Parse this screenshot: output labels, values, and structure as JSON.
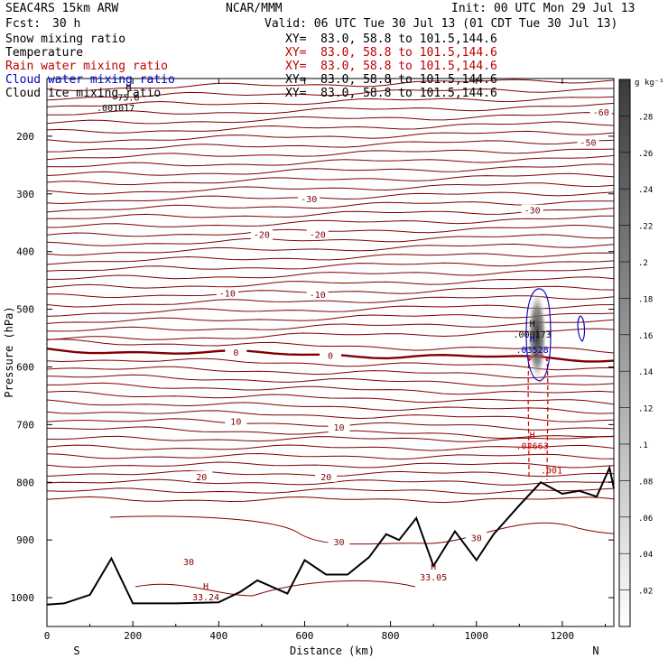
{
  "header": {
    "model": "SEAC4RS 15km ARW",
    "center": "NCAR/MMM",
    "init": "Init: 00 UTC Mon 29 Jul 13",
    "fcst_label": "Fcst:",
    "fcst_value": "30 h",
    "valid": "Valid: 06 UTC Tue 30 Jul 13 (01 CDT Tue 30 Jul 13)"
  },
  "fields": [
    {
      "name": "Snow mixing ratio",
      "color": "#000000",
      "xy": "XY=  83.0, 58.8 to 101.5,144.6",
      "xy_color": "#000000"
    },
    {
      "name": "Temperature",
      "color": "#000000",
      "xy": "XY=  83.0, 58.8 to 101.5,144.6",
      "xy_color": "#c00000"
    },
    {
      "name": "Rain water mixing ratio",
      "color": "#c00000",
      "xy": "XY=  83.0, 58.8 to 101.5,144.6",
      "xy_color": "#c00000"
    },
    {
      "name": "Cloud water mixing ratio",
      "color": "#0000c0",
      "xy": "XY=  83.0, 58.8 to 101.5,144.6",
      "xy_color": "#000000"
    },
    {
      "name": "Cloud ice mixing ratio",
      "color": "#000000",
      "xy": "XY=  83.0, 58.8 to 101.5,144.6",
      "xy_color": "#000000"
    }
  ],
  "chart_data": {
    "type": "contour-cross-section",
    "xlabel": "Distance (km)",
    "ylabel": "Pressure (hPa)",
    "xlim": [
      0,
      1320
    ],
    "ylim": [
      1050,
      100
    ],
    "x_ticks": [
      0,
      200,
      400,
      600,
      800,
      1000,
      1200
    ],
    "y_ticks": [
      200,
      300,
      400,
      500,
      600,
      700,
      800,
      900,
      1000
    ],
    "left_end_label": "S",
    "right_end_label": "N",
    "colorbar": {
      "unit": "g kg⁻¹",
      "ticks": [
        ".02",
        ".04",
        ".06",
        ".08",
        ".1",
        ".12",
        ".14",
        ".16",
        ".18",
        ".2",
        ".22",
        ".24",
        ".26",
        ".28"
      ]
    },
    "temperature_contour_labels": [
      {
        "label": "-60",
        "x": 1290,
        "p": 158
      },
      {
        "label": "-50",
        "x": 1260,
        "p": 210
      },
      {
        "label": "-30",
        "x": 610,
        "p": 308
      },
      {
        "label": "-30",
        "x": 1130,
        "p": 328
      },
      {
        "label": "-20",
        "x": 500,
        "p": 370
      },
      {
        "label": "-20",
        "x": 630,
        "p": 370
      },
      {
        "label": "-10",
        "x": 420,
        "p": 472
      },
      {
        "label": "-10",
        "x": 630,
        "p": 474
      },
      {
        "label": "0",
        "x": 440,
        "p": 574
      },
      {
        "label": "0",
        "x": 660,
        "p": 580
      },
      {
        "label": "10",
        "x": 440,
        "p": 694
      },
      {
        "label": "10",
        "x": 680,
        "p": 704
      },
      {
        "label": "20",
        "x": 360,
        "p": 790
      },
      {
        "label": "20",
        "x": 650,
        "p": 790
      },
      {
        "label": "30",
        "x": 330,
        "p": 937
      },
      {
        "label": "30",
        "x": 680,
        "p": 903
      },
      {
        "label": "30",
        "x": 1000,
        "p": 896
      }
    ],
    "extrema": [
      {
        "type": "H",
        "value": "33.24",
        "x": 370,
        "p": 992,
        "color": "#800000"
      },
      {
        "type": "H",
        "value": "33.05",
        "x": 900,
        "p": 958,
        "color": "#800000"
      },
      {
        "type": "H",
        "value": ".000173",
        "x": 1130,
        "p": 537,
        "color": "#000000"
      },
      {
        "type": "H",
        "value": ".03528",
        "x": 1130,
        "p": 563,
        "color": "#0000c0"
      },
      {
        "type": "H",
        "value": ".02663",
        "x": 1130,
        "p": 730,
        "color": "#c00000"
      },
      {
        "type": "",
        "value": ".001",
        "x": 1175,
        "p": 772,
        "color": "#c00000"
      },
      {
        "type": "H",
        "value": "75.0",
        "x": 190,
        "p": 126,
        "color": "#000000"
      },
      {
        "type": "",
        "value": ".001017",
        "x": 160,
        "p": 144,
        "color": "#000000"
      }
    ],
    "terrain_x": [
      0,
      40,
      100,
      150,
      200,
      300,
      400,
      450,
      490,
      560,
      600,
      650,
      700,
      750,
      790,
      820,
      860,
      900,
      950,
      1000,
      1040,
      1100,
      1150,
      1200,
      1240,
      1280,
      1310,
      1320
    ],
    "terrain_p": [
      1012,
      1010,
      995,
      932,
      1010,
      1010,
      1008,
      990,
      970,
      993,
      935,
      960,
      960,
      930,
      890,
      900,
      862,
      945,
      885,
      935,
      890,
      840,
      800,
      820,
      815,
      825,
      775,
      810
    ]
  }
}
